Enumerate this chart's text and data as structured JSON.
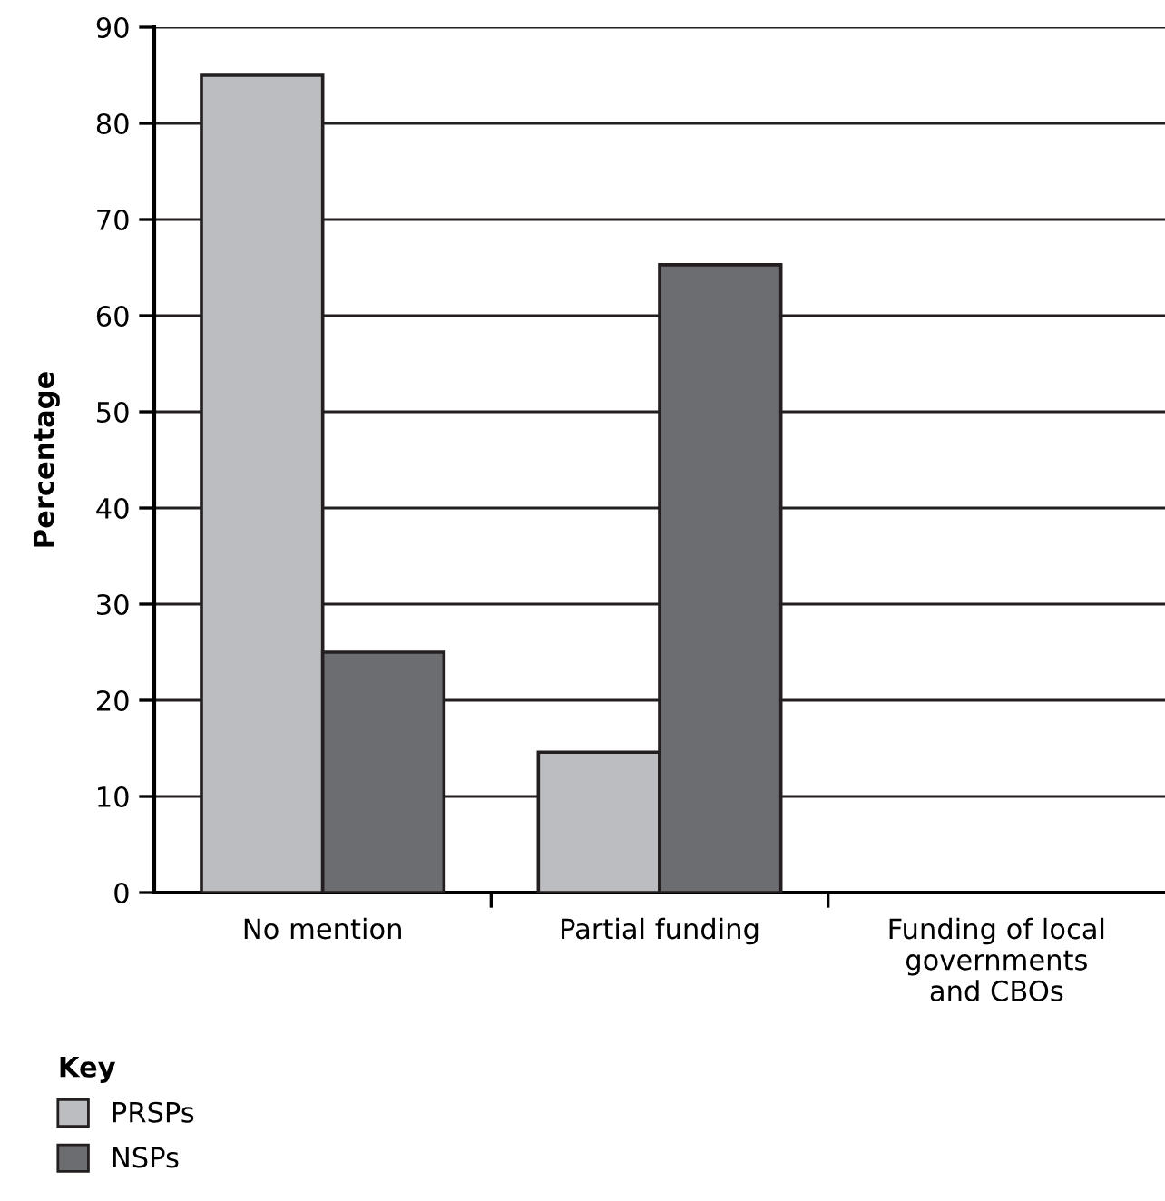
{
  "chart_data": {
    "type": "bar",
    "ylabel": "Percentage",
    "legend_title": "Key",
    "categories": [
      "No mention",
      "Partial funding",
      "Funding of local\ngovernments\nand CBOs"
    ],
    "series": [
      {
        "name": "PRSPs",
        "color": "#bcbdc0",
        "values": [
          85,
          14.6,
          0
        ]
      },
      {
        "name": "NSPs",
        "color": "#6c6d71",
        "values": [
          25,
          65.3,
          0
        ]
      }
    ],
    "ylim": [
      0,
      90
    ],
    "yticks": [
      0,
      10,
      20,
      30,
      40,
      50,
      60,
      70,
      80,
      90
    ],
    "grid": "y",
    "legend": "bottom left"
  }
}
